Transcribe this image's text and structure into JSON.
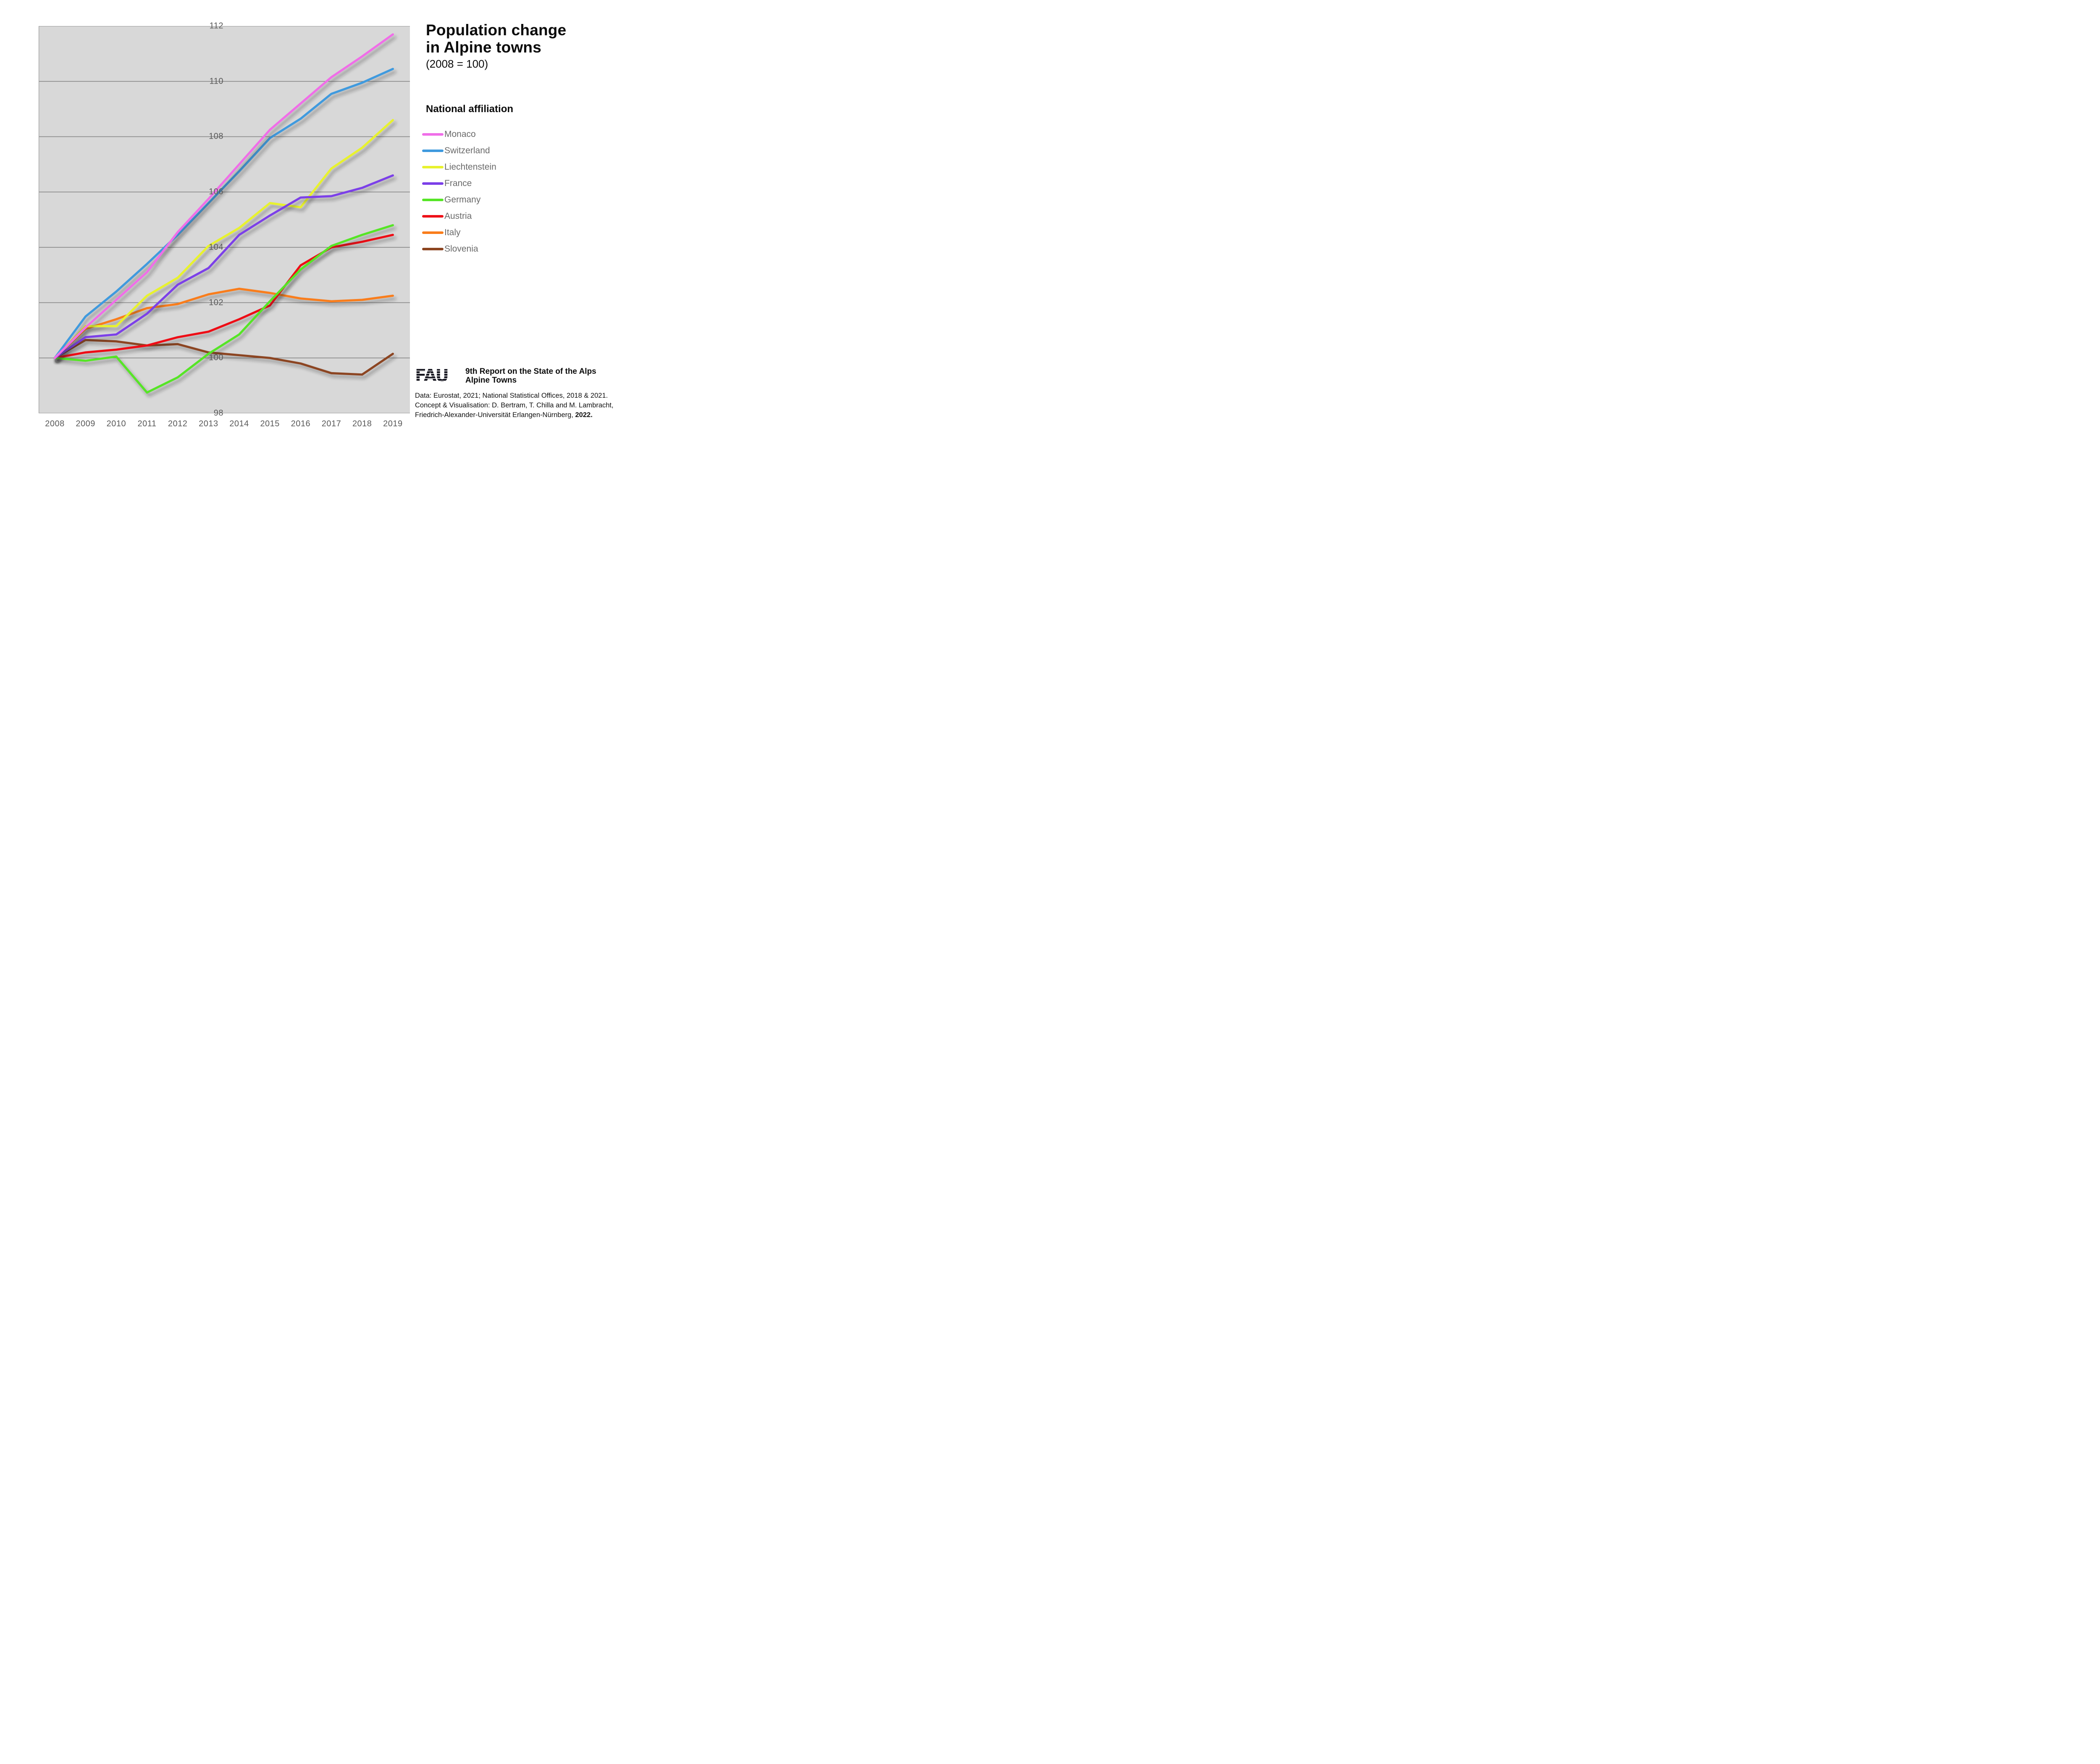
{
  "title": {
    "line1": "Population change",
    "line2": "in Alpine towns",
    "subtitle": "(2008 = 100)"
  },
  "legend": {
    "header": "National affiliation",
    "items": [
      {
        "label": "Monaco",
        "color": "#f06ee8"
      },
      {
        "label": "Switzerland",
        "color": "#3f9ade"
      },
      {
        "label": "Liechtenstein",
        "color": "#e8f22d"
      },
      {
        "label": "France",
        "color": "#7b3fe8"
      },
      {
        "label": "Germany",
        "color": "#56e526"
      },
      {
        "label": "Austria",
        "color": "#ee1018"
      },
      {
        "label": "Italy",
        "color": "#f97d1b"
      },
      {
        "label": "Slovenia",
        "color": "#8c4420"
      }
    ]
  },
  "footer": {
    "logo_text": "FAU",
    "report_line1": "9th Report on the State of the Alps",
    "report_line2": "Alpine Towns",
    "credit_line1": "Data: Eurostat, 2021; National Statistical Offices, 2018 & 2021.",
    "credit_line2": "Concept & Visualisation: D. Bertram, T. Chilla and M. Lambracht,",
    "credit_line3_normal": "Friedrich-Alexander-Universität Erlangen-Nürnberg, ",
    "credit_line3_bold": "2022."
  },
  "chart_data": {
    "type": "line",
    "title": "Population change in Alpine towns (2008 = 100)",
    "x": [
      2008,
      2009,
      2010,
      2011,
      2012,
      2013,
      2014,
      2015,
      2016,
      2017,
      2018,
      2019
    ],
    "ylim": [
      98,
      112
    ],
    "yticks": [
      98,
      100,
      102,
      104,
      106,
      108,
      110,
      112
    ],
    "grid": "horizontal",
    "legend_position": "right",
    "plot_bg": "#d8d8d8",
    "gridline_color": "#868686",
    "axis_color": "#6f6f6f",
    "series": [
      {
        "name": "Monaco",
        "color": "#f06ee8",
        "values": [
          100,
          101.1,
          102.1,
          103.1,
          104.55,
          105.75,
          107.0,
          108.25,
          109.2,
          110.15,
          110.9,
          111.7
        ]
      },
      {
        "name": "Switzerland",
        "color": "#3f9ade",
        "values": [
          100,
          101.5,
          102.4,
          103.4,
          104.45,
          105.6,
          106.75,
          107.95,
          108.65,
          109.55,
          109.95,
          110.45
        ]
      },
      {
        "name": "Liechtenstein",
        "color": "#e8f22d",
        "values": [
          100,
          101.15,
          101.15,
          102.25,
          102.9,
          104.05,
          104.7,
          105.6,
          105.45,
          106.85,
          107.6,
          108.6
        ]
      },
      {
        "name": "France",
        "color": "#7b3fe8",
        "values": [
          100,
          100.75,
          100.85,
          101.6,
          102.65,
          103.25,
          104.45,
          105.15,
          105.8,
          105.85,
          106.15,
          106.6
        ]
      },
      {
        "name": "Germany",
        "color": "#56e526",
        "values": [
          100,
          99.9,
          100.05,
          98.75,
          99.3,
          100.15,
          100.85,
          102.05,
          103.2,
          104.05,
          104.45,
          104.8
        ]
      },
      {
        "name": "Austria",
        "color": "#ee1018",
        "values": [
          100,
          100.2,
          100.3,
          100.45,
          100.75,
          100.95,
          101.4,
          101.9,
          103.35,
          104.0,
          104.2,
          104.45
        ]
      },
      {
        "name": "Italy",
        "color": "#f97d1b",
        "values": [
          100,
          101.05,
          101.4,
          101.8,
          101.95,
          102.3,
          102.5,
          102.35,
          102.15,
          102.05,
          102.1,
          102.25
        ]
      },
      {
        "name": "Slovenia",
        "color": "#8c4420",
        "values": [
          100,
          100.65,
          100.6,
          100.45,
          100.5,
          100.2,
          100.1,
          100.0,
          99.8,
          99.45,
          99.4,
          100.15
        ]
      }
    ],
    "z_order": [
      "Slovenia",
      "Italy",
      "Liechtenstein",
      "Austria",
      "Germany",
      "France",
      "Switzerland",
      "Monaco"
    ]
  }
}
